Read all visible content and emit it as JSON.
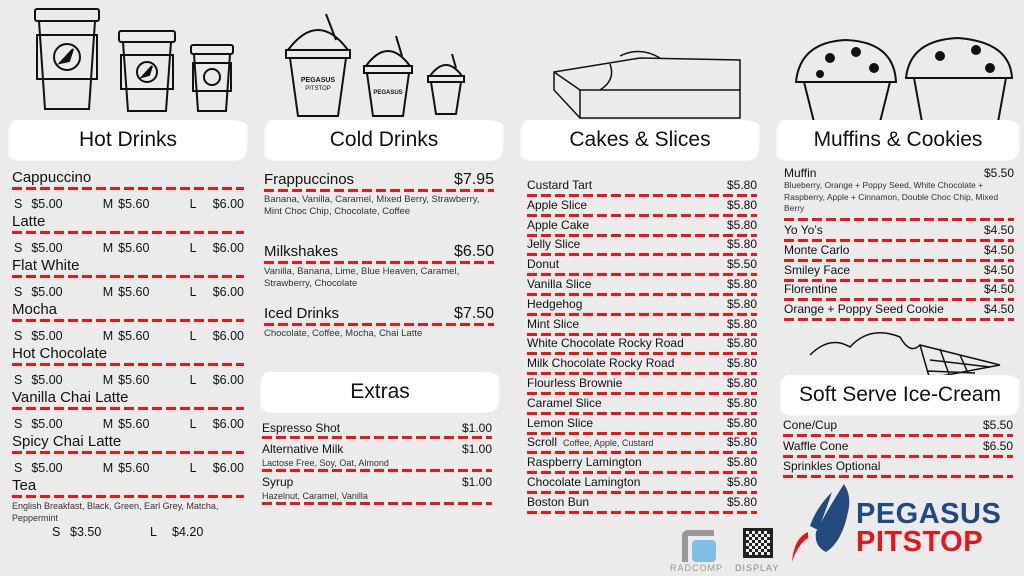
{
  "colors": {
    "background": "#ebebeb",
    "dash": "#f0141c",
    "brand_blue": "#23497e",
    "brand_red": "#e8141c"
  },
  "hot": {
    "title": "Hot Drinks",
    "size_labels": [
      "S",
      "M",
      "L"
    ],
    "items": [
      {
        "name": "Cappuccino",
        "prices": [
          "$5.00",
          "$5.60",
          "$6.00"
        ]
      },
      {
        "name": "Latte",
        "prices": [
          "$5.00",
          "$5.60",
          "$6.00"
        ]
      },
      {
        "name": "Flat White",
        "prices": [
          "$5.00",
          "$5.60",
          "$6.00"
        ]
      },
      {
        "name": "Mocha",
        "prices": [
          "$5.00",
          "$5.60",
          "$6.00"
        ]
      },
      {
        "name": "Hot Chocolate",
        "prices": [
          "$5.00",
          "$5.60",
          "$6.00"
        ]
      },
      {
        "name": "Vanilla Chai Latte",
        "prices": [
          "$5.00",
          "$5.60",
          "$6.00"
        ]
      },
      {
        "name": "Spicy Chai Latte",
        "prices": [
          "$5.00",
          "$5.60",
          "$6.00"
        ]
      }
    ],
    "tea": {
      "name": "Tea",
      "desc": "English Breakfast, Black, Green, Earl Grey, Matcha, Peppermint",
      "s_label": "S",
      "s_price": "$3.50",
      "l_label": "L",
      "l_price": "$4.20"
    }
  },
  "cold": {
    "title": "Cold Drinks",
    "items": [
      {
        "name": "Frappuccinos",
        "price": "$7.95",
        "desc": "Banana, Vanilla, Caramel, Mixed Berry, Strawberry, Mint Choc Chip, Chocolate, Coffee"
      },
      {
        "name": "Milkshakes",
        "price": "$6.50",
        "desc": "Vanilla, Banana, Lime, Blue Heaven, Caramel, Strawberry, Chocolate"
      },
      {
        "name": "Iced Drinks",
        "price": "$7.50",
        "desc": "Chocolate, Coffee, Mocha, Chai Latte"
      }
    ]
  },
  "extras": {
    "title": "Extras",
    "items": [
      {
        "name": "Espresso Shot",
        "price": "$1.00",
        "desc": ""
      },
      {
        "name": "Alternative Milk",
        "price": "$1.00",
        "desc": "Lactose Free, Soy, Oat, Almond"
      },
      {
        "name": "Syrup",
        "price": "$1.00",
        "desc": "Hazelnut, Caramel, Vanilla"
      }
    ]
  },
  "cakes": {
    "title": "Cakes & Slices",
    "items": [
      {
        "name": "Custard Tart",
        "price": "$5.80"
      },
      {
        "name": "Apple Slice",
        "price": "$5.80"
      },
      {
        "name": "Apple Cake",
        "price": "$5.80"
      },
      {
        "name": "Jelly Slice",
        "price": "$5.80"
      },
      {
        "name": "Donut",
        "price": "$5.50"
      },
      {
        "name": "Vanilla Slice",
        "price": "$5.80"
      },
      {
        "name": "Hedgehog",
        "price": "$5.80"
      },
      {
        "name": "Mint Slice",
        "price": "$5.80"
      },
      {
        "name": "White Chocolate Rocky Road",
        "price": "$5.80"
      },
      {
        "name": "Milk Chocolate Rocky Road",
        "price": "$5.80"
      },
      {
        "name": "Flourless Brownie",
        "price": "$5.80"
      },
      {
        "name": "Caramel Slice",
        "price": "$5.80"
      },
      {
        "name": "Lemon Slice",
        "price": "$5.80"
      },
      {
        "name": "Scroll",
        "note": "Coffee, Apple, Custard",
        "price": "$5.80"
      },
      {
        "name": "Raspberry Lamington",
        "price": "$5.80"
      },
      {
        "name": "Chocolate Lamington",
        "price": "$5.80"
      },
      {
        "name": "Boston Bun",
        "price": "$5.80"
      }
    ]
  },
  "muffins": {
    "title": "Muffins & Cookies",
    "muffin": {
      "name": "Muffin",
      "price": "$5.50",
      "desc": "Blueberry, Orange + Poppy Seed, White Chocolate + Raspberry, Apple + Cinnamon, Double Choc Chip, Mixed Berry"
    },
    "items": [
      {
        "name": "Yo Yo’s",
        "price": "$4.50"
      },
      {
        "name": "Monte Carlo",
        "price": "$4.50"
      },
      {
        "name": "Smiley Face",
        "price": "$4.50"
      },
      {
        "name": "Florentine",
        "price": "$4.50"
      },
      {
        "name": "Orange + Poppy Seed Cookie",
        "price": "$4.50"
      }
    ]
  },
  "softserve": {
    "title": "Soft Serve Ice-Cream",
    "items": [
      {
        "name": "Cone/Cup",
        "price": "$5.50"
      },
      {
        "name": "Waffle Cone",
        "price": "$6.50"
      },
      {
        "name": "Sprinkles Optional",
        "price": ""
      }
    ]
  },
  "brand": {
    "line1": "PEGASUS",
    "line2": "PITSTOP",
    "cup_text": "PEGASUS PITSTOP"
  },
  "footer": {
    "radcomp": "RADCOMP",
    "display": "DISPLAY"
  }
}
